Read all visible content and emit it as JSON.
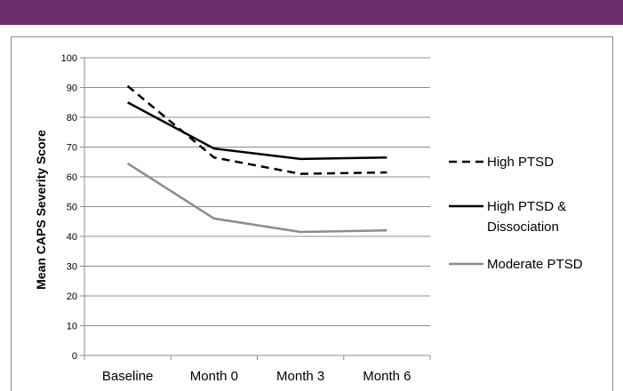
{
  "colors": {
    "top_bar": "#6b2c6b",
    "grid": "#8c8c8c",
    "axis": "#8c8c8c"
  },
  "chart_data": {
    "type": "line",
    "title": "",
    "xlabel": "",
    "ylabel": "Mean CAPS Severity Score",
    "ylim": [
      0,
      100
    ],
    "yticks": [
      0,
      10,
      20,
      30,
      40,
      50,
      60,
      70,
      80,
      90,
      100
    ],
    "grid": true,
    "legend_position": "right",
    "categories": [
      "Baseline",
      "Month 0",
      "Month 3",
      "Month 6"
    ],
    "series": [
      {
        "name": "High PTSD",
        "values": [
          90.5,
          66.5,
          61,
          61.5
        ],
        "color": "#000000",
        "dash": "dashed"
      },
      {
        "name": "High PTSD & Dissociation",
        "legend_lines": [
          "High PTSD &",
          "Dissociation"
        ],
        "values": [
          85,
          69.5,
          66,
          66.5
        ],
        "color": "#000000",
        "dash": "solid"
      },
      {
        "name": "Moderate PTSD",
        "values": [
          64.5,
          46,
          41.5,
          42
        ],
        "color": "#8c8c8c",
        "dash": "solid"
      }
    ]
  }
}
